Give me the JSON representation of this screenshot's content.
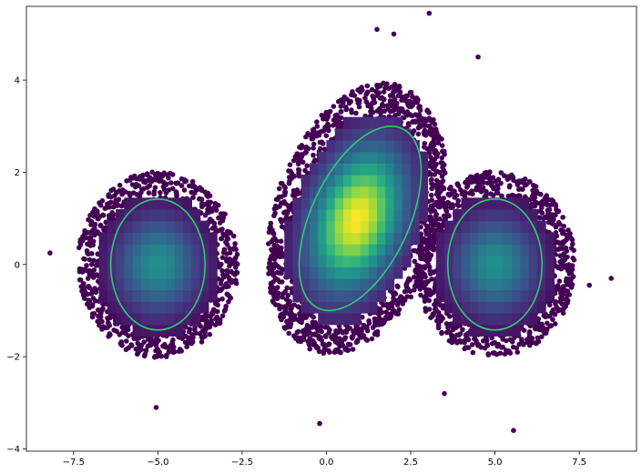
{
  "chart_data": {
    "type": "scatter",
    "title": "",
    "xlabel": "",
    "ylabel": "",
    "xlim": [
      -8.9,
      9.2
    ],
    "ylim": [
      -4.05,
      5.6
    ],
    "grid": false,
    "xticks": [
      -7.5,
      -5.0,
      -2.5,
      0.0,
      2.5,
      5.0,
      7.5
    ],
    "xtick_labels": [
      "−7.5",
      "−5.0",
      "−2.5",
      "0.0",
      "2.5",
      "5.0",
      "7.5"
    ],
    "yticks": [
      -4,
      -2,
      0,
      2,
      4
    ],
    "ytick_labels": [
      "−4",
      "−2",
      "0",
      "2",
      "4"
    ],
    "colormap": [
      "#440154",
      "#472c7a",
      "#3b518b",
      "#2c718e",
      "#21908d",
      "#27ad81",
      "#5cc863",
      "#aadc32",
      "#fde725"
    ],
    "marker_color": "#440154",
    "ellipse_color": "#2ecc71",
    "clusters": [
      {
        "cx": -5.0,
        "cy": 0.0,
        "sx": 0.85,
        "sy": 0.72,
        "rho": 0.0,
        "peak": 0.5
      },
      {
        "cx": 0.9,
        "cy": 1.0,
        "sx": 0.95,
        "sy": 1.05,
        "rho": 0.3,
        "peak": 1.0
      },
      {
        "cx": 5.0,
        "cy": 0.0,
        "sx": 0.85,
        "sy": 0.72,
        "rho": 0.0,
        "peak": 0.5
      }
    ],
    "ellipses": [
      {
        "cx": -5.0,
        "cy": 0.0,
        "rx": 1.4,
        "ry": 1.42,
        "angle": 0
      },
      {
        "cx": 1.0,
        "cy": 1.0,
        "rx": 1.45,
        "ry": 2.15,
        "angle": 25
      },
      {
        "cx": 5.0,
        "cy": 0.0,
        "rx": 1.4,
        "ry": 1.42,
        "angle": 0
      }
    ],
    "outliers": [
      {
        "x": 3.05,
        "y": 5.45
      },
      {
        "x": 1.5,
        "y": 5.1
      },
      {
        "x": 2.0,
        "y": 5.0
      },
      {
        "x": 4.5,
        "y": 4.5
      },
      {
        "x": -0.2,
        "y": -3.45
      },
      {
        "x": 5.55,
        "y": -3.6
      },
      {
        "x": 8.45,
        "y": -0.3
      },
      {
        "x": 7.8,
        "y": -0.45
      },
      {
        "x": -8.2,
        "y": 0.25
      },
      {
        "x": 3.5,
        "y": -2.8
      },
      {
        "x": -5.05,
        "y": -3.1
      }
    ]
  }
}
